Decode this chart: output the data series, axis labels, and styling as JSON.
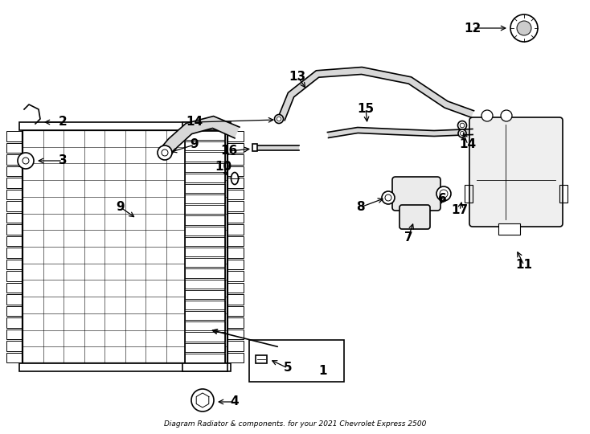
{
  "title": "Diagram Radiator & components. for your 2021 Chevrolet Express 2500",
  "bg_color": "#ffffff",
  "line_color": "#000000",
  "label_color": "#000000",
  "fig_width": 7.34,
  "fig_height": 5.4,
  "dpi": 100
}
